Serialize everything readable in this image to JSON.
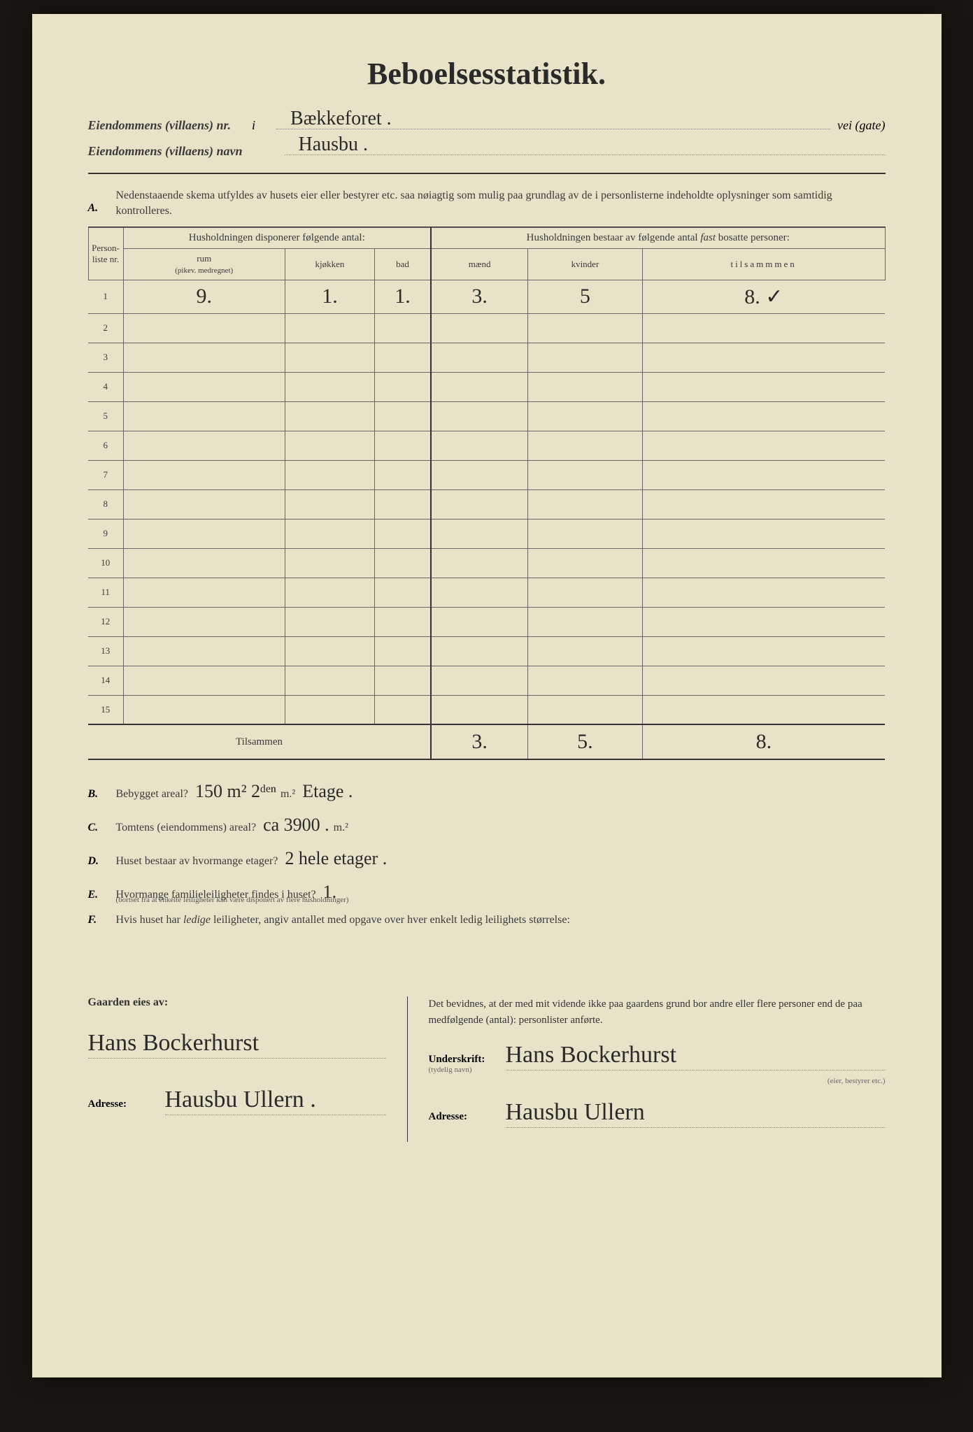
{
  "title": "Beboelsesstatistik.",
  "header": {
    "line1_label": "Eiendommens (villaens) nr.",
    "line1_i": "i",
    "line1_value": "Bækkeforet .",
    "line1_suffix": "vei (gate)",
    "line2_label": "Eiendommens (villaens) navn",
    "line2_value": "Hausbu ."
  },
  "sectionA": {
    "letter": "A.",
    "text": "Nedenstaaende skema utfyldes av husets eier eller bestyrer etc. saa nøiagtig som mulig paa grundlag av de i personlisterne indeholdte oplysninger som samtidig kontrolleres."
  },
  "table": {
    "col_personliste": "Person-liste nr.",
    "group_left": "Husholdningen disponerer følgende antal:",
    "group_right": "Husholdningen bestaar av følgende antal fast bosatte personer:",
    "group_right_fast": "fast",
    "col_rum": "rum",
    "col_rum_sub": "(pikev. medregnet)",
    "col_kjokken": "kjøkken",
    "col_bad": "bad",
    "col_maend": "mænd",
    "col_kvinder": "kvinder",
    "col_tilsammen": "tilsammmen",
    "row_nums": [
      "1",
      "2",
      "3",
      "4",
      "5",
      "6",
      "7",
      "8",
      "9",
      "10",
      "11",
      "12",
      "13",
      "14",
      "15"
    ],
    "rows": [
      {
        "rum": "9.",
        "kjokken": "1.",
        "bad": "1.",
        "maend": "3.",
        "kvinder": "5",
        "tilsammen": "8. ✓"
      },
      {
        "rum": "",
        "kjokken": "",
        "bad": "",
        "maend": "",
        "kvinder": "",
        "tilsammen": ""
      },
      {
        "rum": "",
        "kjokken": "",
        "bad": "",
        "maend": "",
        "kvinder": "",
        "tilsammen": ""
      },
      {
        "rum": "",
        "kjokken": "",
        "bad": "",
        "maend": "",
        "kvinder": "",
        "tilsammen": ""
      },
      {
        "rum": "",
        "kjokken": "",
        "bad": "",
        "maend": "",
        "kvinder": "",
        "tilsammen": ""
      },
      {
        "rum": "",
        "kjokken": "",
        "bad": "",
        "maend": "",
        "kvinder": "",
        "tilsammen": ""
      },
      {
        "rum": "",
        "kjokken": "",
        "bad": "",
        "maend": "",
        "kvinder": "",
        "tilsammen": ""
      },
      {
        "rum": "",
        "kjokken": "",
        "bad": "",
        "maend": "",
        "kvinder": "",
        "tilsammen": ""
      },
      {
        "rum": "",
        "kjokken": "",
        "bad": "",
        "maend": "",
        "kvinder": "",
        "tilsammen": ""
      },
      {
        "rum": "",
        "kjokken": "",
        "bad": "",
        "maend": "",
        "kvinder": "",
        "tilsammen": ""
      },
      {
        "rum": "",
        "kjokken": "",
        "bad": "",
        "maend": "",
        "kvinder": "",
        "tilsammen": ""
      },
      {
        "rum": "",
        "kjokken": "",
        "bad": "",
        "maend": "",
        "kvinder": "",
        "tilsammen": ""
      },
      {
        "rum": "",
        "kjokken": "",
        "bad": "",
        "maend": "",
        "kvinder": "",
        "tilsammen": ""
      },
      {
        "rum": "",
        "kjokken": "",
        "bad": "",
        "maend": "",
        "kvinder": "",
        "tilsammen": ""
      },
      {
        "rum": "",
        "kjokken": "",
        "bad": "",
        "maend": "",
        "kvinder": "",
        "tilsammen": ""
      }
    ],
    "tilsammen_label": "Tilsammen",
    "totals": {
      "maend": "3.",
      "kvinder": "5.",
      "tilsammen": "8."
    }
  },
  "questions": {
    "B": {
      "letter": "B.",
      "text": "Bebygget areal?",
      "answer": "150 m² 2ᵈᵉⁿ",
      "unit": "m.²",
      "answer2": "Etage ."
    },
    "C": {
      "letter": "C.",
      "text": "Tomtens (eiendommens) areal?",
      "answer": "ca 3900 .",
      "unit": "m.²"
    },
    "D": {
      "letter": "D.",
      "text": "Huset bestaar av hvormange etager?",
      "answer": "2 hele etager ."
    },
    "E": {
      "letter": "E.",
      "text": "Hvormange familieleiligheter findes i huset?",
      "answer": "1.",
      "subtext": "(bortset fra at enkelte leiligheter kan være disponert av flere husholdninger)"
    },
    "F": {
      "letter": "F.",
      "text": "Hvis huset har ledige leiligheter, angiv antallet med opgave over hver enkelt ledig leilighets størrelse:"
    }
  },
  "signatures": {
    "left_label": "Gaarden eies av:",
    "left_sig": "Hans Bockerhurst",
    "left_addr_label": "Adresse:",
    "left_addr": "Hausbu Ullern .",
    "right_text": "Det bevidnes, at der med mit vidende ikke paa gaardens grund bor andre eller flere personer end de paa medfølgende (antal):                    personlister anførte.",
    "right_sig_label": "Underskrift:",
    "right_sig_sub": "(tydelig navn)",
    "right_sig": "Hans Bockerhurst",
    "right_sig_role": "(eier, bestyrer etc.)",
    "right_addr_label": "Adresse:",
    "right_addr": "Hausbu Ullern"
  },
  "colors": {
    "paper": "#e8e3c8",
    "ink_print": "#3a3a3a",
    "ink_hand": "#2a2a2a",
    "border": "#666"
  }
}
